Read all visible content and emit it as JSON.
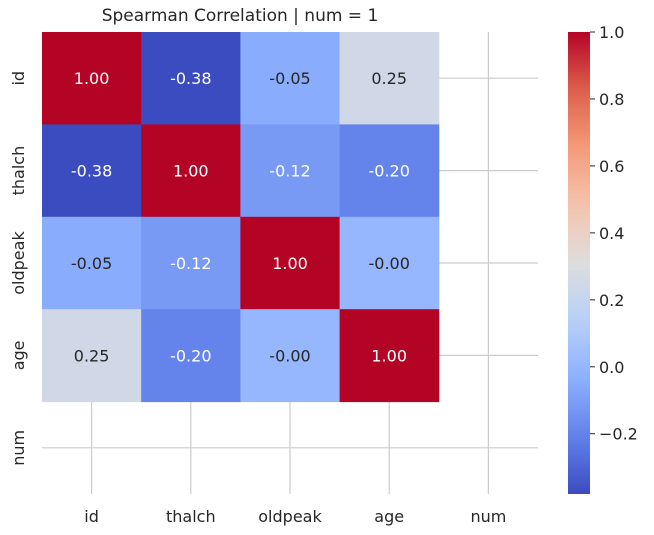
{
  "chart_data": {
    "type": "heatmap",
    "title": "Spearman Correlation | num = 1",
    "row_labels": [
      "id",
      "thalch",
      "oldpeak",
      "age",
      "num"
    ],
    "col_labels": [
      "id",
      "thalch",
      "oldpeak",
      "age",
      "num"
    ],
    "values": [
      [
        1.0,
        -0.38,
        -0.05,
        0.25,
        null
      ],
      [
        -0.38,
        1.0,
        -0.12,
        -0.2,
        null
      ],
      [
        -0.05,
        -0.12,
        1.0,
        -0.0,
        null
      ],
      [
        0.25,
        -0.2,
        -0.0,
        1.0,
        null
      ],
      [
        null,
        null,
        null,
        null,
        null
      ]
    ],
    "cell_text": [
      [
        "1.00",
        "-0.38",
        "-0.05",
        "0.25",
        ""
      ],
      [
        "-0.38",
        "1.00",
        "-0.12",
        "-0.20",
        ""
      ],
      [
        "-0.05",
        "-0.12",
        "1.00",
        "-0.00",
        ""
      ],
      [
        "0.25",
        "-0.20",
        "-0.00",
        "1.00",
        ""
      ],
      [
        "",
        "",
        "",
        "",
        ""
      ]
    ],
    "colormap": "coolwarm",
    "colorbar": {
      "vmin": -0.38,
      "vmax": 1.0,
      "ticks": [
        1.0,
        0.8,
        0.6,
        0.4,
        0.2,
        0.0,
        -0.2
      ],
      "tick_labels": [
        "1.0",
        "0.8",
        "0.6",
        "0.4",
        "0.2",
        "0.0",
        "−0.2"
      ]
    },
    "grid": true,
    "colors": {
      "grid": "#cccccc",
      "text_dark": "#262626",
      "text_light": "#ffffff"
    }
  }
}
